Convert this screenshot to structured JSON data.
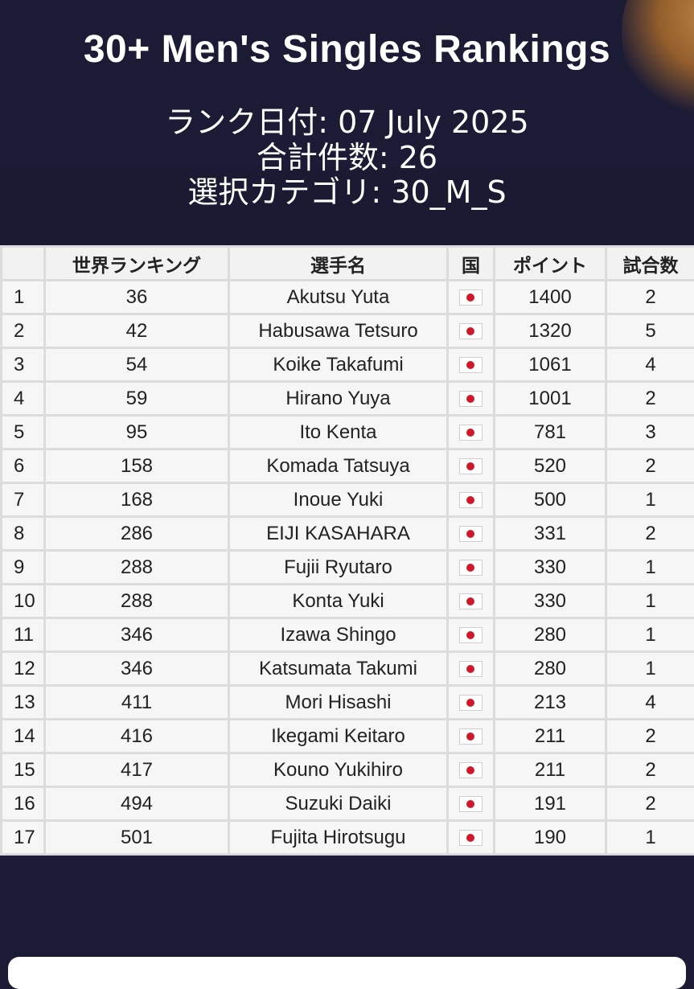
{
  "header": {
    "title": "30+ Men's Singles Rankings",
    "rank_date": "ランク日付: 07 July 2025",
    "total_count": "合計件数: 26",
    "category": "選択カテゴリ: 30_M_S"
  },
  "table": {
    "columns": [
      "",
      "世界ランキング",
      "選手名",
      "国",
      "ポイント",
      "試合数"
    ],
    "rows": [
      {
        "pos": "1",
        "world": "36",
        "name": "Akutsu Yuta",
        "country": "japan-flag",
        "points": "1400",
        "matches": "2"
      },
      {
        "pos": "2",
        "world": "42",
        "name": "Habusawa Tetsuro",
        "country": "japan-flag",
        "points": "1320",
        "matches": "5"
      },
      {
        "pos": "3",
        "world": "54",
        "name": "Koike Takafumi",
        "country": "japan-flag",
        "points": "1061",
        "matches": "4"
      },
      {
        "pos": "4",
        "world": "59",
        "name": "Hirano Yuya",
        "country": "japan-flag",
        "points": "1001",
        "matches": "2"
      },
      {
        "pos": "5",
        "world": "95",
        "name": "Ito Kenta",
        "country": "japan-flag",
        "points": "781",
        "matches": "3"
      },
      {
        "pos": "6",
        "world": "158",
        "name": "Komada Tatsuya",
        "country": "japan-flag",
        "points": "520",
        "matches": "2"
      },
      {
        "pos": "7",
        "world": "168",
        "name": "Inoue Yuki",
        "country": "japan-flag",
        "points": "500",
        "matches": "1"
      },
      {
        "pos": "8",
        "world": "286",
        "name": "EIJI KASAHARA",
        "country": "japan-flag",
        "points": "331",
        "matches": "2"
      },
      {
        "pos": "9",
        "world": "288",
        "name": "Fujii Ryutaro",
        "country": "japan-flag",
        "points": "330",
        "matches": "1"
      },
      {
        "pos": "10",
        "world": "288",
        "name": "Konta Yuki",
        "country": "japan-flag",
        "points": "330",
        "matches": "1"
      },
      {
        "pos": "11",
        "world": "346",
        "name": "Izawa Shingo",
        "country": "japan-flag",
        "points": "280",
        "matches": "1"
      },
      {
        "pos": "12",
        "world": "346",
        "name": "Katsumata Takumi",
        "country": "japan-flag",
        "points": "280",
        "matches": "1"
      },
      {
        "pos": "13",
        "world": "411",
        "name": "Mori Hisashi",
        "country": "japan-flag",
        "points": "213",
        "matches": "4"
      },
      {
        "pos": "14",
        "world": "416",
        "name": "Ikegami Keitaro",
        "country": "japan-flag",
        "points": "211",
        "matches": "2"
      },
      {
        "pos": "15",
        "world": "417",
        "name": "Kouno Yukihiro",
        "country": "japan-flag",
        "points": "211",
        "matches": "2"
      },
      {
        "pos": "16",
        "world": "494",
        "name": "Suzuki Daiki",
        "country": "japan-flag",
        "points": "191",
        "matches": "2"
      },
      {
        "pos": "17",
        "world": "501",
        "name": "Fujita Hirotsugu",
        "country": "japan-flag",
        "points": "190",
        "matches": "1"
      }
    ]
  },
  "colors": {
    "background": "#1b1b35",
    "table_bg": "#f4f4f4",
    "flag_red": "#cc1a2c"
  }
}
